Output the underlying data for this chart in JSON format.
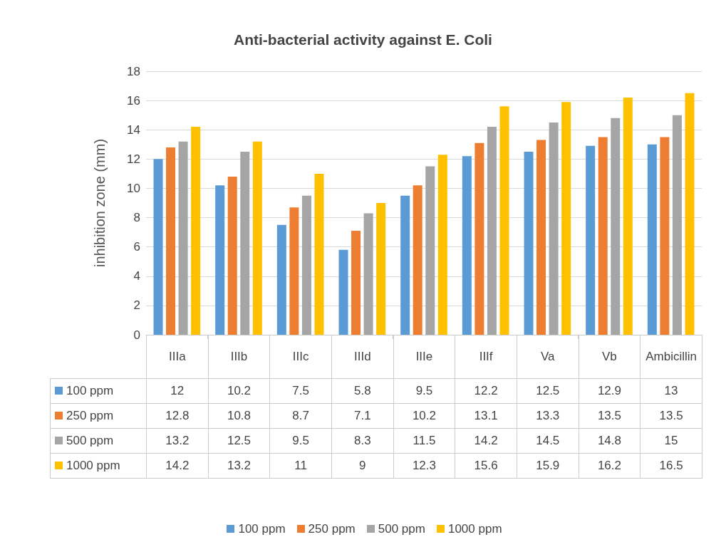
{
  "chart_data": {
    "type": "bar",
    "title": "Anti-bacterial activity against E. Coli",
    "ylabel": "inhibition zone (mm)",
    "categories": [
      "IIIa",
      "IIIb",
      "IIIc",
      "IIId",
      "IIIe",
      "IIIf",
      "Va",
      "Vb",
      "Ambicillin"
    ],
    "series": [
      {
        "name": "100 ppm",
        "color": "#5b9bd5",
        "values": [
          12,
          10.2,
          7.5,
          5.8,
          9.5,
          12.2,
          12.5,
          12.9,
          13
        ]
      },
      {
        "name": "250 ppm",
        "color": "#ed7d31",
        "values": [
          12.8,
          10.8,
          8.7,
          7.1,
          10.2,
          13.1,
          13.3,
          13.5,
          13.5
        ]
      },
      {
        "name": "500 ppm",
        "color": "#a5a5a5",
        "values": [
          13.2,
          12.5,
          9.5,
          8.3,
          11.5,
          14.2,
          14.5,
          14.8,
          15
        ]
      },
      {
        "name": "1000 ppm",
        "color": "#ffc000",
        "values": [
          14.2,
          13.2,
          11,
          9,
          12.3,
          15.6,
          15.9,
          16.2,
          16.5
        ]
      }
    ],
    "ylim": [
      0,
      18
    ],
    "yticks": [
      0,
      2,
      4,
      6,
      8,
      10,
      12,
      14,
      16,
      18
    ],
    "grid": "y",
    "legend": "bottom",
    "data_labels": true
  }
}
